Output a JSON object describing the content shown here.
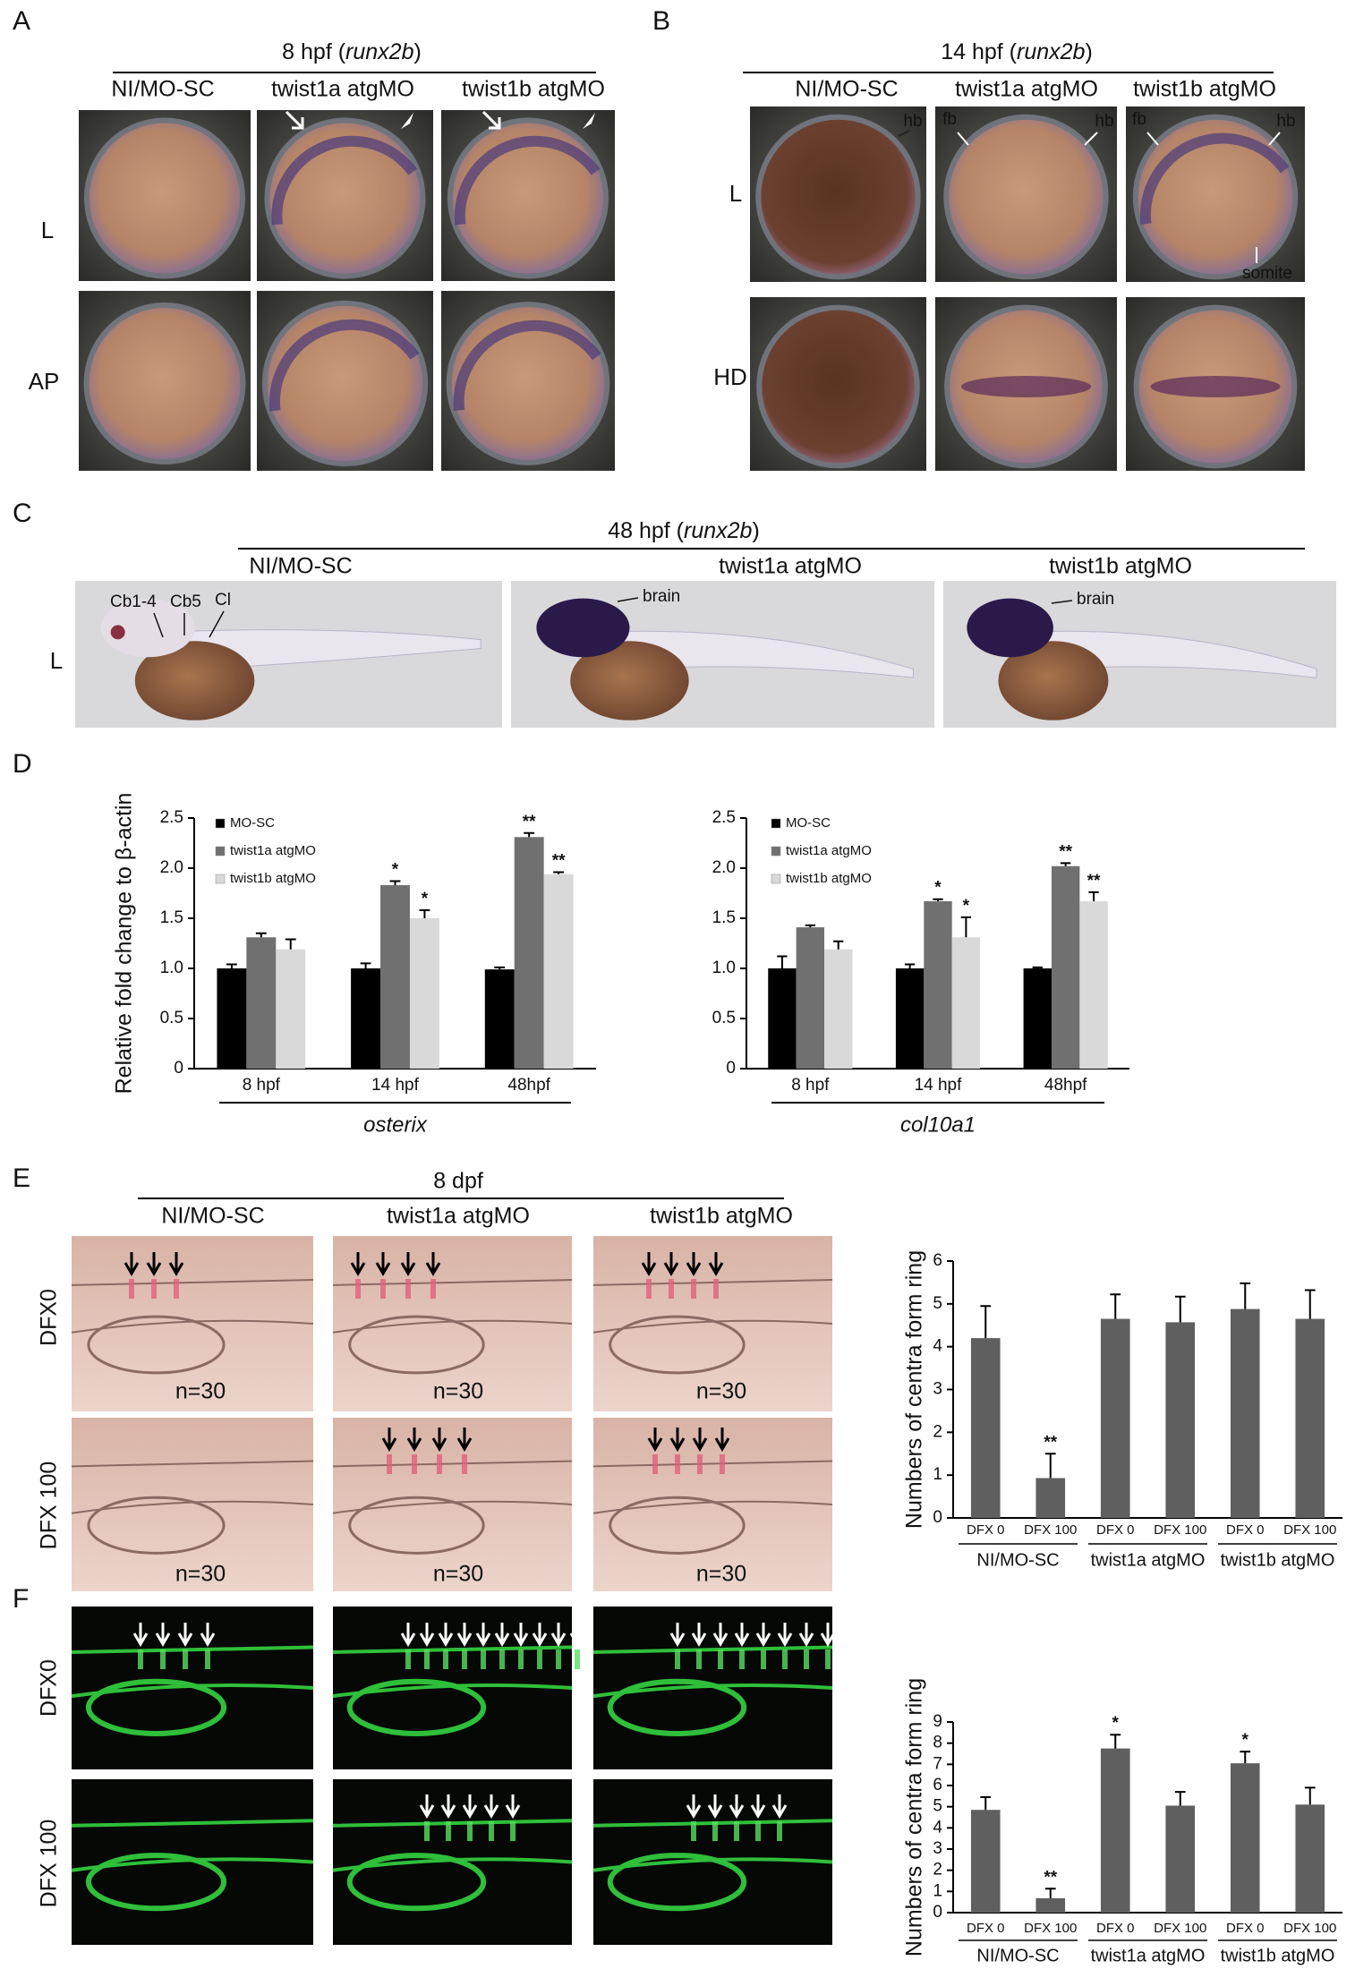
{
  "panels": {
    "A": {
      "letter": "A",
      "title": "8 hpf (runx2b)",
      "columns": [
        "NI/MO-SC",
        "twist1a atgMO",
        "twist1b atgMO"
      ],
      "rows": [
        "L",
        "AP"
      ]
    },
    "B": {
      "letter": "B",
      "title": "14 hpf (runx2b)",
      "columns": [
        "NI/MO-SC",
        "twist1a atgMO",
        "twist1b atgMO"
      ],
      "rows": [
        "L",
        "HD"
      ],
      "annotations": [
        "hb",
        "fb",
        "hb",
        "fb",
        "hb",
        "somite"
      ]
    },
    "C": {
      "letter": "C",
      "title": "48 hpf (runx2b)",
      "columns": [
        "NI/MO-SC",
        "twist1a atgMO",
        "twist1b atgMO"
      ],
      "rows": [
        "L"
      ],
      "annotations": [
        "Cb1-4",
        "Cb5",
        "Cl",
        "brain",
        "brain"
      ]
    },
    "D": {
      "letter": "D"
    },
    "E": {
      "letter": "E",
      "title": "8 dpf",
      "columns": [
        "NI/MO-SC",
        "twist1a atgMO",
        "twist1b atgMO"
      ],
      "rows": [
        "DFX0",
        "DFX 100"
      ],
      "counts": [
        "n=30",
        "n=30",
        "n=30",
        "n=30",
        "n=30",
        "n=30"
      ]
    },
    "F": {
      "letter": "F",
      "rows": [
        "DFX0",
        "DFX 100"
      ]
    }
  },
  "chart_data": [
    {
      "type": "bar",
      "y_label": "Relative fold change to β-actin",
      "x_label": "osterix",
      "categories": [
        "8 hpf",
        "14 hpf",
        "48hpf"
      ],
      "series": [
        {
          "name": "MO-SC",
          "color": "#000000",
          "values": [
            1.0,
            1.0,
            0.99
          ],
          "errors": [
            0.04,
            0.05,
            0.02
          ]
        },
        {
          "name": "twist1a atgMO",
          "color": "#707070",
          "values": [
            1.31,
            1.83,
            2.31
          ],
          "errors": [
            0.04,
            0.04,
            0.04
          ],
          "annotations": [
            null,
            "*",
            "**"
          ]
        },
        {
          "name": "twist1b atgMO",
          "color": "#d9d9d9",
          "values": [
            1.19,
            1.5,
            1.94
          ],
          "errors": [
            0.1,
            0.08,
            0.02
          ],
          "annotations": [
            null,
            "*",
            "**"
          ]
        }
      ],
      "ylim": [
        0,
        2.5
      ],
      "yticks": [
        0,
        0.5,
        {
          "value": 1,
          "label": "1.0"
        },
        1.5,
        {
          "value": 2,
          "label": "2.0"
        },
        2.5
      ]
    },
    {
      "type": "bar",
      "x_label": "col10a1",
      "categories": [
        "8 hpf",
        "14 hpf",
        "48hpf"
      ],
      "series": [
        {
          "name": "MO-SC",
          "color": "#000000",
          "values": [
            1.0,
            1.0,
            1.0
          ],
          "errors": [
            0.12,
            0.04,
            0.01
          ]
        },
        {
          "name": "twist1a atgMO",
          "color": "#707070",
          "values": [
            1.41,
            1.67,
            2.02
          ],
          "errors": [
            0.02,
            0.02,
            0.03
          ],
          "annotations": [
            null,
            "*",
            "**"
          ]
        },
        {
          "name": "twist1b atgMO",
          "color": "#d9d9d9",
          "values": [
            1.19,
            1.31,
            1.67
          ],
          "errors": [
            0.08,
            0.2,
            0.09
          ],
          "annotations": [
            null,
            "*",
            "**"
          ]
        }
      ],
      "ylim": [
        0,
        2.5
      ],
      "yticks": [
        0,
        0.5,
        {
          "value": 1,
          "label": "1.0"
        },
        1.5,
        {
          "value": 2,
          "label": "2.0"
        },
        2.5
      ]
    },
    {
      "type": "bar",
      "y_label": "Numbers of centra form ring",
      "categories": [
        "DFX 0",
        "DFX 100",
        "DFX 0",
        "DFX 100",
        "DFX 0",
        "DFX 100"
      ],
      "groups": [
        "NI/MO-SC",
        "twist1a atgMO",
        "twist1b atgMO"
      ],
      "values": [
        4.2,
        0.93,
        4.65,
        4.57,
        4.88,
        4.65
      ],
      "errors": [
        0.75,
        0.57,
        0.57,
        0.6,
        0.6,
        0.67
      ],
      "annotations": [
        null,
        "**",
        null,
        null,
        null,
        null
      ],
      "color": "#5f5f5f",
      "ylim": [
        0,
        6
      ],
      "yticks": [
        0,
        1,
        2,
        3,
        4,
        5,
        6
      ]
    },
    {
      "type": "bar",
      "y_label": "Numbers of centra form ring",
      "categories": [
        "DFX 0",
        "DFX 100",
        "DFX 0",
        "DFX 100",
        "DFX 0",
        "DFX 100"
      ],
      "groups": [
        "NI/MO-SC",
        "twist1a atgMO",
        "twist1b atgMO"
      ],
      "values": [
        4.85,
        0.68,
        7.75,
        5.05,
        7.05,
        5.1
      ],
      "errors": [
        0.6,
        0.45,
        0.65,
        0.65,
        0.55,
        0.8
      ],
      "annotations": [
        null,
        "**",
        "*",
        null,
        "*",
        null
      ],
      "color": "#5f5f5f",
      "ylim": [
        0,
        9
      ],
      "yticks": [
        0,
        1,
        2,
        3,
        4,
        5,
        6,
        7,
        8,
        9
      ]
    }
  ]
}
